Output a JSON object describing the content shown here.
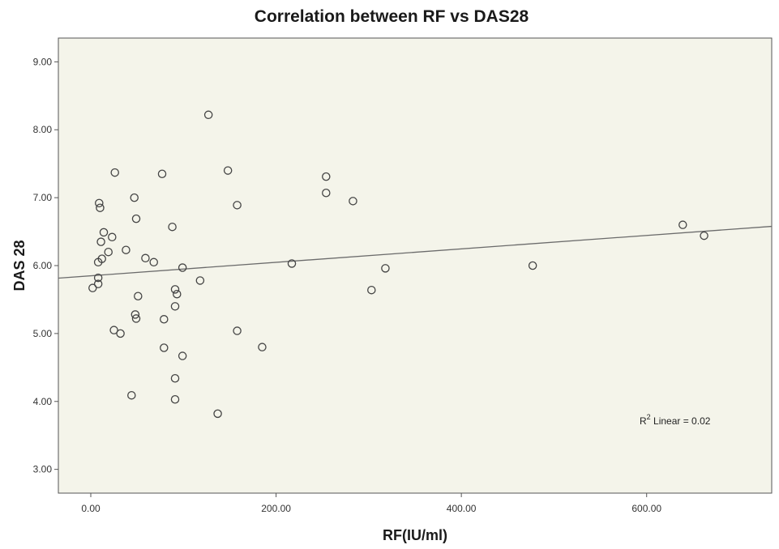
{
  "chart_data": {
    "type": "scatter",
    "title": "Correlation  between  RF  vs  DAS28",
    "xlabel": "RF(IU/ml)",
    "ylabel": "DAS 28",
    "xlim": [
      -35,
      735
    ],
    "ylim": [
      2.65,
      9.35
    ],
    "x_ticks": [
      0,
      200,
      400,
      600
    ],
    "x_tick_labels": [
      "0.00",
      "200.00",
      "400.00",
      "600.00"
    ],
    "y_ticks": [
      3,
      4,
      5,
      6,
      7,
      8,
      9
    ],
    "y_tick_labels": [
      "3.00",
      "4.00",
      "5.00",
      "6.00",
      "7.00",
      "8.00",
      "9.00"
    ],
    "grid": false,
    "points": [
      [
        2,
        5.67
      ],
      [
        8,
        5.73
      ],
      [
        8,
        5.82
      ],
      [
        8,
        6.05
      ],
      [
        9,
        6.92
      ],
      [
        10,
        6.85
      ],
      [
        11,
        6.35
      ],
      [
        12,
        6.1
      ],
      [
        14,
        6.49
      ],
      [
        19,
        6.2
      ],
      [
        23,
        6.42
      ],
      [
        25,
        5.05
      ],
      [
        26,
        7.37
      ],
      [
        32,
        5.0
      ],
      [
        38,
        6.23
      ],
      [
        44,
        4.09
      ],
      [
        47,
        7.0
      ],
      [
        48,
        5.28
      ],
      [
        49,
        5.22
      ],
      [
        49,
        6.69
      ],
      [
        51,
        5.55
      ],
      [
        59,
        6.11
      ],
      [
        68,
        6.05
      ],
      [
        77,
        7.35
      ],
      [
        79,
        5.21
      ],
      [
        79,
        4.79
      ],
      [
        88,
        6.57
      ],
      [
        91,
        5.65
      ],
      [
        91,
        5.4
      ],
      [
        91,
        4.34
      ],
      [
        91,
        4.03
      ],
      [
        93,
        5.58
      ],
      [
        99,
        5.97
      ],
      [
        99,
        4.67
      ],
      [
        118,
        5.78
      ],
      [
        127,
        8.22
      ],
      [
        137,
        3.82
      ],
      [
        148,
        7.4
      ],
      [
        158,
        6.89
      ],
      [
        158,
        5.04
      ],
      [
        185,
        4.8
      ],
      [
        217,
        6.03
      ],
      [
        254,
        7.31
      ],
      [
        254,
        7.07
      ],
      [
        283,
        6.95
      ],
      [
        303,
        5.64
      ],
      [
        318,
        5.96
      ],
      [
        477,
        6.0
      ],
      [
        639,
        6.6
      ],
      [
        662,
        6.44
      ]
    ],
    "fit_line": {
      "slope": 0.00099,
      "intercept": 5.85,
      "x_range": [
        -35,
        735
      ]
    },
    "annotation": {
      "r2_prefix": "R",
      "r2_sup": "2",
      "r2_text": " Linear = 0.02"
    }
  }
}
